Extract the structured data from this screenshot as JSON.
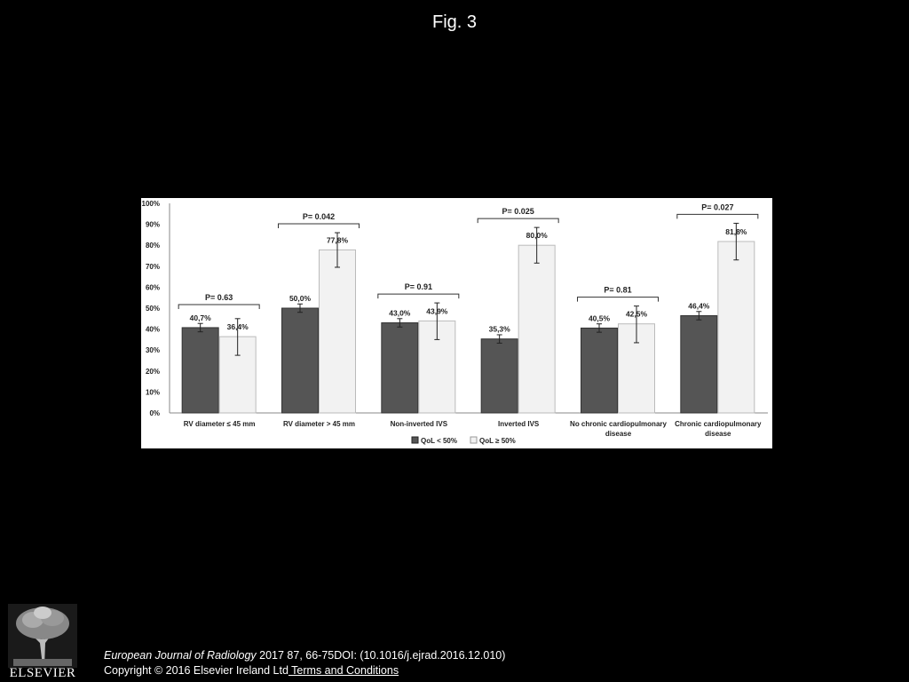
{
  "figure_title": "Fig. 3",
  "citation": {
    "journal": "European Journal of Radiology",
    "details": "2017 87, 66-75DOI: (10.1016/j.ejrad.2016.12.010)"
  },
  "copyright": {
    "text": "Copyright © 2016 Elsevier Ireland Ltd",
    "link": " Terms and Conditions"
  },
  "logo": {
    "word": "ELSEVIER",
    "icon": "elsevier-tree-icon"
  },
  "chart_data": {
    "type": "bar",
    "title": "",
    "xlabel": "",
    "ylabel": "",
    "ylim": [
      0,
      100
    ],
    "yticks": [
      "0%",
      "10%",
      "20%",
      "30%",
      "40%",
      "50%",
      "60%",
      "70%",
      "80%",
      "90%",
      "100%"
    ],
    "grid": false,
    "legend_position": "bottom",
    "categories": [
      [
        "RV diameter ≤ 45 mm"
      ],
      [
        "RV diameter  > 45 mm"
      ],
      [
        "Non-inverted IVS"
      ],
      [
        "Inverted IVS"
      ],
      [
        "No chronic cardiopulmonary",
        "disease"
      ],
      [
        "Chronic cardiopulmonary",
        "disease"
      ]
    ],
    "series": [
      {
        "name": "QoL < 50%",
        "color": "#555555",
        "values": [
          40.7,
          50.0,
          43.0,
          35.3,
          40.5,
          46.4
        ],
        "labels": [
          "40,7%",
          "50,0%",
          "43,0%",
          "35,3%",
          "40,5%",
          "46,4%"
        ],
        "error_low": [
          38.7,
          48.0,
          41.0,
          33.3,
          38.5,
          44.4
        ],
        "error_high": [
          42.7,
          52.0,
          45.0,
          37.3,
          42.5,
          48.4
        ]
      },
      {
        "name": "QoL ≥ 50%",
        "color": "#f2f2f2",
        "values": [
          36.4,
          77.8,
          43.9,
          80.0,
          42.5,
          81.8
        ],
        "labels": [
          "36,4%",
          "77,8%",
          "43,9%",
          "80,0%",
          "42,5%",
          "81,8%"
        ],
        "error_low": [
          27.5,
          69.5,
          35.0,
          71.5,
          33.5,
          73.0
        ],
        "error_high": [
          45.0,
          86.0,
          52.5,
          88.5,
          51.0,
          90.5
        ]
      }
    ],
    "pvalues": [
      "P= 0.63",
      "P= 0.042",
      "P= 0.91",
      "P= 0.025",
      "P= 0.81",
      "P= 0.027"
    ]
  }
}
